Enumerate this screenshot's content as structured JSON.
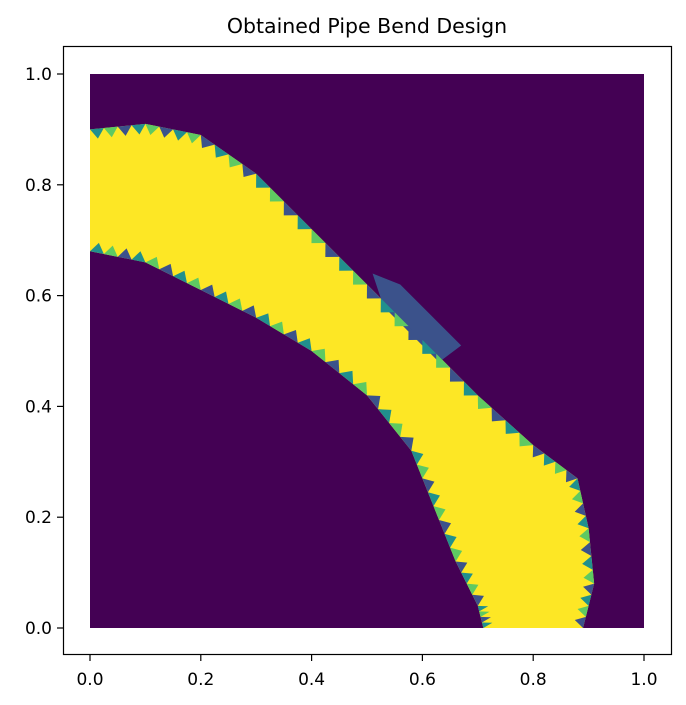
{
  "chart_data": {
    "type": "heatmap",
    "title": "Obtained Pipe Bend Design",
    "xlabel": "",
    "ylabel": "",
    "xlim": [
      -0.05,
      1.05
    ],
    "ylim": [
      -0.05,
      1.05
    ],
    "xticks": [
      "0.0",
      "0.2",
      "0.4",
      "0.6",
      "0.8",
      "1.0"
    ],
    "yticks": [
      "0.0",
      "0.2",
      "0.4",
      "0.6",
      "0.8",
      "1.0"
    ],
    "grid": false,
    "colormap": "viridis",
    "colors": {
      "background": "#440154",
      "material": "#fde725",
      "mid_teal": "#21908d",
      "mid_green": "#5ec962",
      "mid_blue": "#3b528b"
    },
    "domain": {
      "x": [
        0.0,
        1.0
      ],
      "y": [
        0.0,
        1.0
      ]
    },
    "pipe_band": {
      "description_values": "density 1 (solid) inside band, 0 outside",
      "inner_boundary": [
        [
          0.0,
          0.68
        ],
        [
          0.1,
          0.66
        ],
        [
          0.2,
          0.61
        ],
        [
          0.3,
          0.56
        ],
        [
          0.4,
          0.5
        ],
        [
          0.5,
          0.42
        ],
        [
          0.58,
          0.32
        ],
        [
          0.62,
          0.22
        ],
        [
          0.66,
          0.12
        ],
        [
          0.7,
          0.04
        ],
        [
          0.71,
          0.0
        ]
      ],
      "outer_boundary": [
        [
          0.0,
          0.9
        ],
        [
          0.1,
          0.91
        ],
        [
          0.2,
          0.89
        ],
        [
          0.3,
          0.82
        ],
        [
          0.4,
          0.72
        ],
        [
          0.5,
          0.62
        ],
        [
          0.6,
          0.52
        ],
        [
          0.7,
          0.42
        ],
        [
          0.8,
          0.33
        ],
        [
          0.88,
          0.27
        ],
        [
          0.9,
          0.18
        ],
        [
          0.91,
          0.08
        ],
        [
          0.89,
          0.0
        ]
      ],
      "detached_fragment": [
        [
          0.51,
          0.64
        ],
        [
          0.56,
          0.62
        ],
        [
          0.67,
          0.51
        ],
        [
          0.63,
          0.48
        ],
        [
          0.53,
          0.58
        ]
      ]
    }
  }
}
